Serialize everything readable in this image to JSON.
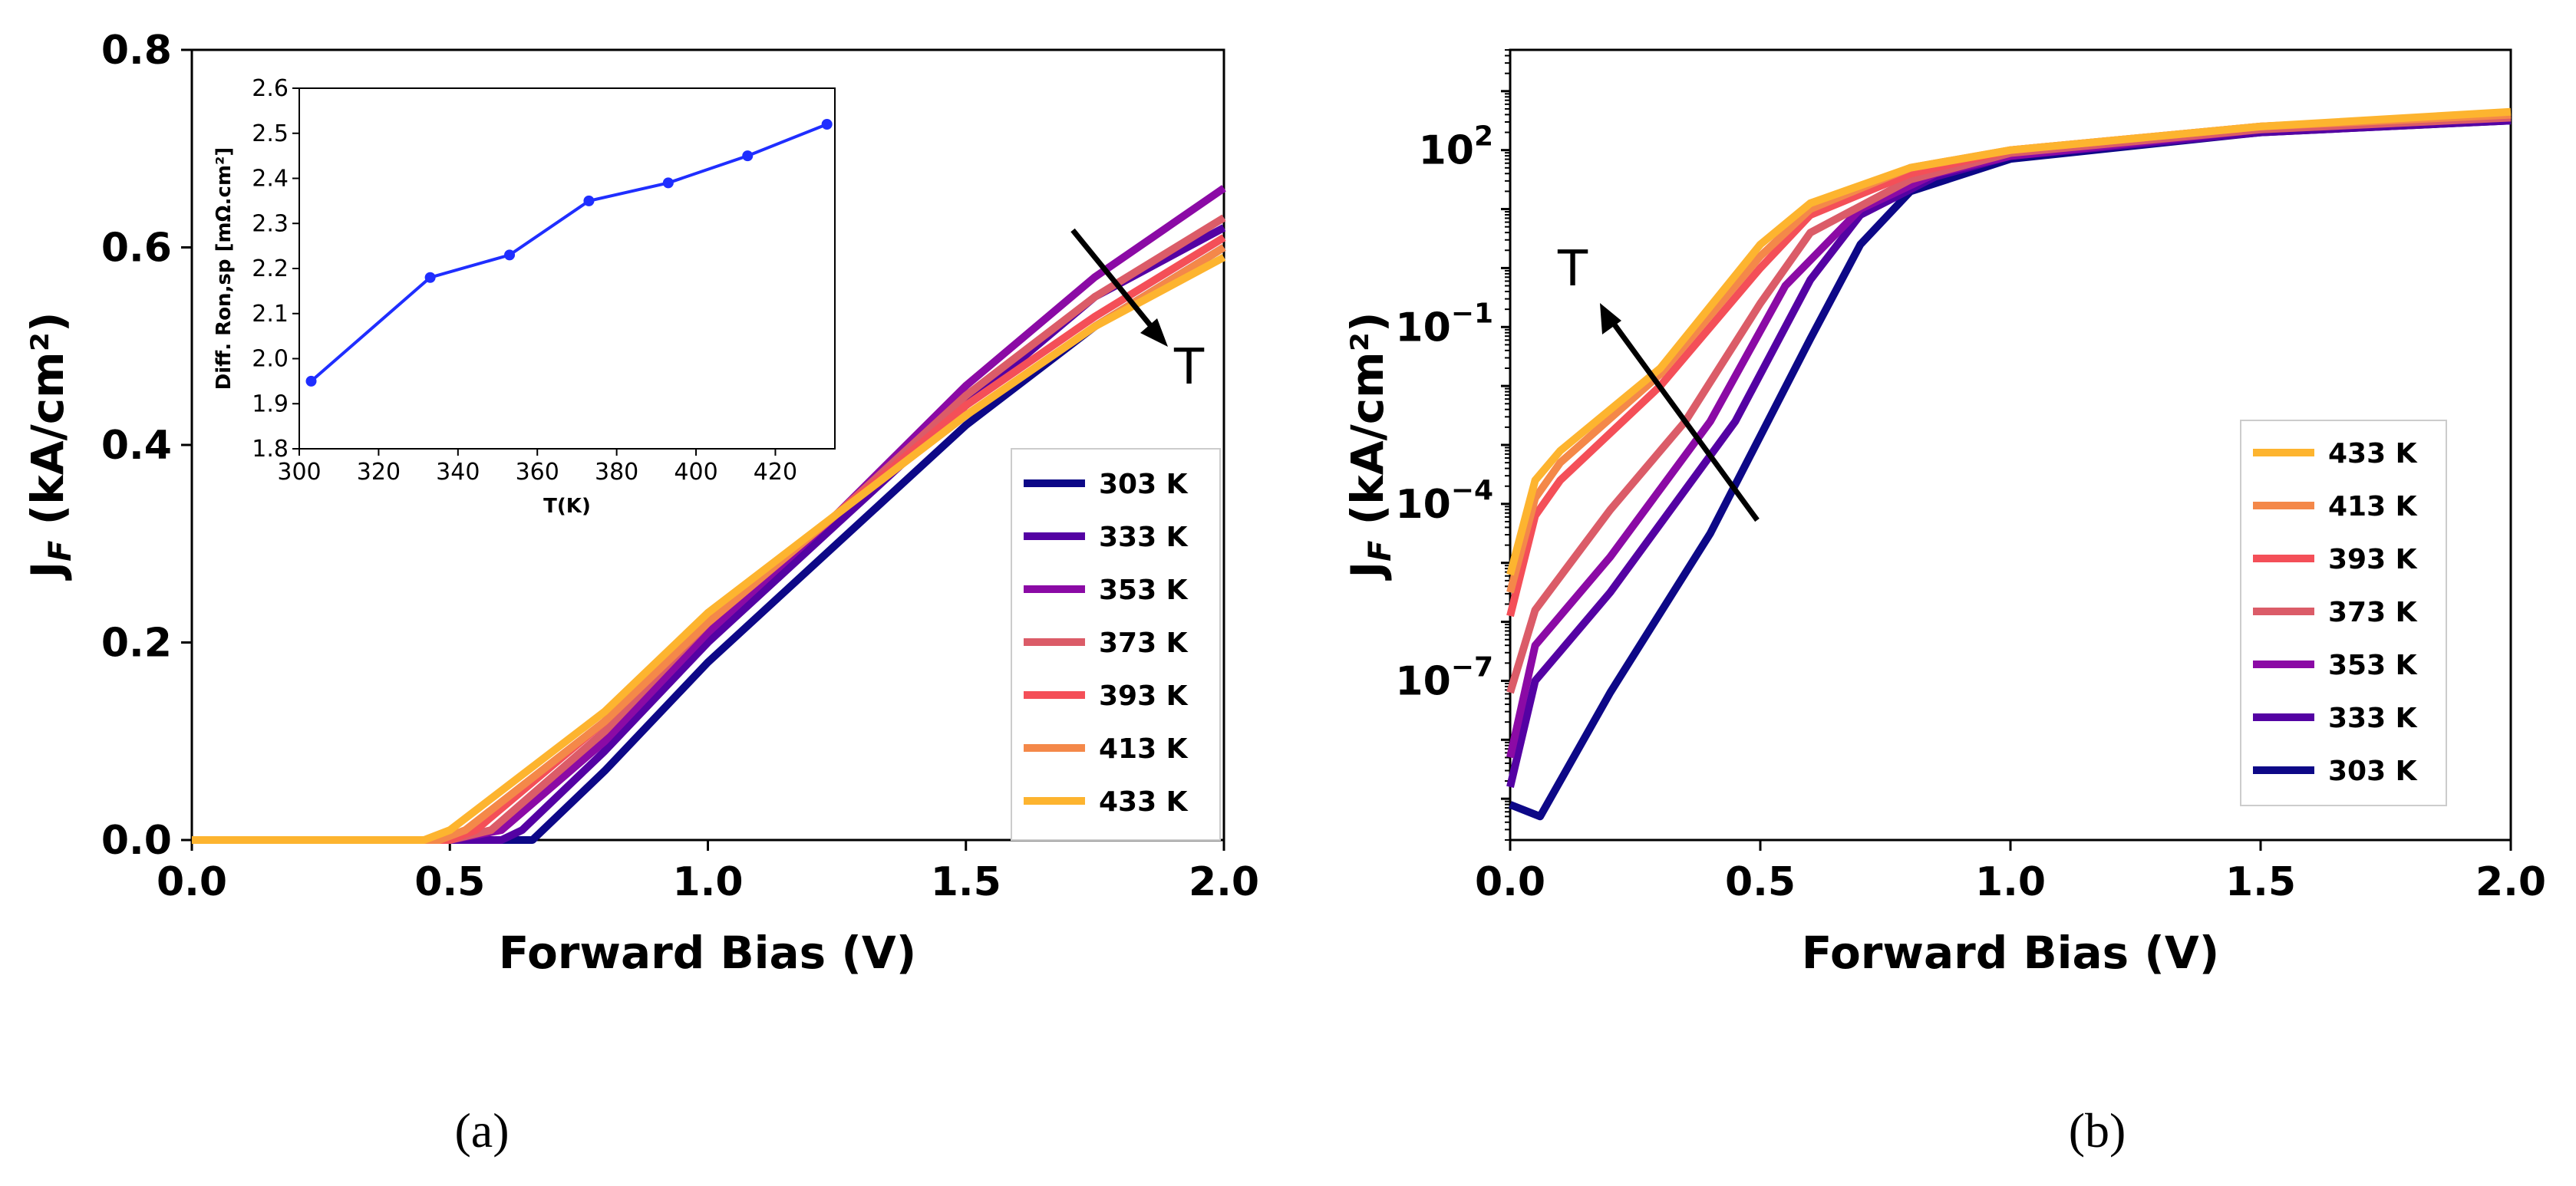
{
  "chart_data": [
    {
      "panel": "a",
      "type": "line",
      "panel_label": "(a)",
      "xlabel": "Forward Bias  (V)",
      "ylabel": "J_F (kA/cm²)",
      "xlim": [
        0,
        2
      ],
      "ylim": [
        0,
        0.8
      ],
      "xticks": [
        "0.0",
        "0.5",
        "1.0",
        "1.5",
        "2.0"
      ],
      "yticks": [
        "0.0",
        "0.2",
        "0.4",
        "0.6",
        "0.8"
      ],
      "annotation": "T",
      "legend_position": "lower-right",
      "series": [
        {
          "name": "303 K",
          "color": "#0d0887",
          "points": [
            [
              0,
              0
            ],
            [
              0.6,
              0
            ],
            [
              0.66,
              0
            ],
            [
              0.8,
              0.07
            ],
            [
              1.0,
              0.18
            ],
            [
              1.25,
              0.3
            ],
            [
              1.5,
              0.42
            ],
            [
              1.75,
              0.52
            ],
            [
              2.0,
              0.6
            ]
          ]
        },
        {
          "name": "333 K",
          "color": "#5402a3",
          "points": [
            [
              0,
              0
            ],
            [
              0.6,
              0
            ],
            [
              0.64,
              0.01
            ],
            [
              0.8,
              0.09
            ],
            [
              1.0,
              0.2
            ],
            [
              1.25,
              0.32
            ],
            [
              1.5,
              0.44
            ],
            [
              1.75,
              0.55
            ],
            [
              2.0,
              0.62
            ]
          ]
        },
        {
          "name": "353 K",
          "color": "#8b0aa5",
          "points": [
            [
              0,
              0
            ],
            [
              0.5,
              0
            ],
            [
              0.6,
              0.01
            ],
            [
              0.8,
              0.1
            ],
            [
              1.0,
              0.21
            ],
            [
              1.25,
              0.33
            ],
            [
              1.5,
              0.46
            ],
            [
              1.75,
              0.57
            ],
            [
              2.0,
              0.66
            ]
          ]
        },
        {
          "name": "373 K",
          "color": "#db5c68",
          "points": [
            [
              0,
              0
            ],
            [
              0.5,
              0
            ],
            [
              0.58,
              0.01
            ],
            [
              0.8,
              0.11
            ],
            [
              1.0,
              0.22
            ],
            [
              1.25,
              0.33
            ],
            [
              1.5,
              0.45
            ],
            [
              1.75,
              0.55
            ],
            [
              2.0,
              0.63
            ]
          ]
        },
        {
          "name": "393 K",
          "color": "#f44f58",
          "points": [
            [
              0,
              0
            ],
            [
              0.5,
              0
            ],
            [
              0.55,
              0.01
            ],
            [
              0.8,
              0.12
            ],
            [
              1.0,
              0.22
            ],
            [
              1.25,
              0.33
            ],
            [
              1.5,
              0.44
            ],
            [
              1.75,
              0.53
            ],
            [
              2.0,
              0.61
            ]
          ]
        },
        {
          "name": "413 K",
          "color": "#f48849",
          "points": [
            [
              0,
              0
            ],
            [
              0.48,
              0
            ],
            [
              0.53,
              0.01
            ],
            [
              0.8,
              0.12
            ],
            [
              1.0,
              0.22
            ],
            [
              1.25,
              0.33
            ],
            [
              1.5,
              0.43
            ],
            [
              1.75,
              0.52
            ],
            [
              2.0,
              0.6
            ]
          ]
        },
        {
          "name": "433 K",
          "color": "#fdb42f",
          "points": [
            [
              0,
              0
            ],
            [
              0.45,
              0
            ],
            [
              0.5,
              0.01
            ],
            [
              0.8,
              0.13
            ],
            [
              1.0,
              0.23
            ],
            [
              1.25,
              0.33
            ],
            [
              1.5,
              0.43
            ],
            [
              1.75,
              0.52
            ],
            [
              2.0,
              0.59
            ]
          ]
        }
      ],
      "inset": {
        "type": "line",
        "xlabel": "T(K)",
        "ylabel": "Diff. Ron,sp [mΩ.cm²]",
        "xlim": [
          300,
          435
        ],
        "ylim": [
          1.8,
          2.6
        ],
        "xticks": [
          "300",
          "320",
          "340",
          "360",
          "380",
          "400",
          "420"
        ],
        "yticks": [
          "1.8",
          "1.9",
          "2.0",
          "2.1",
          "2.2",
          "2.3",
          "2.4",
          "2.5",
          "2.6"
        ],
        "color": "#1f2eff",
        "x": [
          303,
          333,
          353,
          373,
          393,
          413,
          433
        ],
        "y": [
          1.95,
          2.18,
          2.23,
          2.35,
          2.39,
          2.45,
          2.52
        ]
      }
    },
    {
      "panel": "b",
      "type": "line",
      "yscale": "log",
      "panel_label": "(b)",
      "xlabel": "Forward Bias  (V)",
      "ylabel": "J_F (kA/cm²)",
      "xlim": [
        0,
        2
      ],
      "ylim_log10": [
        -9.7,
        3.7
      ],
      "xticks": [
        "0.0",
        "0.5",
        "1.0",
        "1.5",
        "2.0"
      ],
      "yticks": [
        {
          "base": "10",
          "exp": "2",
          "log10": 2
        },
        {
          "base": "10",
          "exp": "−1",
          "log10": -1
        },
        {
          "base": "10",
          "exp": "−4",
          "log10": -4
        },
        {
          "base": "10",
          "exp": "−7",
          "log10": -7
        }
      ],
      "annotation": "T",
      "legend_position": "center-right",
      "series": [
        {
          "name": "433 K",
          "color": "#fdb42f",
          "points": [
            [
              0,
              -5.2
            ],
            [
              0.05,
              -3.6
            ],
            [
              0.1,
              -3.1
            ],
            [
              0.3,
              -1.7
            ],
            [
              0.5,
              0.4
            ],
            [
              0.6,
              1.1
            ],
            [
              0.8,
              1.7
            ],
            [
              1.0,
              2.0
            ],
            [
              1.5,
              2.4
            ],
            [
              2.0,
              2.65
            ]
          ]
        },
        {
          "name": "413 K",
          "color": "#f48849",
          "points": [
            [
              0,
              -5.5
            ],
            [
              0.05,
              -3.9
            ],
            [
              0.1,
              -3.3
            ],
            [
              0.3,
              -1.8
            ],
            [
              0.5,
              0.2
            ],
            [
              0.6,
              1.0
            ],
            [
              0.8,
              1.7
            ],
            [
              1.0,
              2.0
            ],
            [
              1.5,
              2.4
            ],
            [
              2.0,
              2.6
            ]
          ]
        },
        {
          "name": "393 K",
          "color": "#f44f58",
          "points": [
            [
              0,
              -5.9
            ],
            [
              0.05,
              -4.2
            ],
            [
              0.1,
              -3.6
            ],
            [
              0.3,
              -2.0
            ],
            [
              0.5,
              0.0
            ],
            [
              0.6,
              0.9
            ],
            [
              0.8,
              1.6
            ],
            [
              1.0,
              2.0
            ],
            [
              1.5,
              2.4
            ],
            [
              2.0,
              2.6
            ]
          ]
        },
        {
          "name": "373 K",
          "color": "#db5c68",
          "points": [
            [
              0,
              -7.2
            ],
            [
              0.05,
              -5.8
            ],
            [
              0.2,
              -4.1
            ],
            [
              0.35,
              -2.6
            ],
            [
              0.5,
              -0.6
            ],
            [
              0.6,
              0.6
            ],
            [
              0.8,
              1.5
            ],
            [
              1.0,
              1.95
            ],
            [
              1.5,
              2.35
            ],
            [
              2.0,
              2.55
            ]
          ]
        },
        {
          "name": "353 K",
          "color": "#8b0aa5",
          "points": [
            [
              0,
              -8.3
            ],
            [
              0.05,
              -6.4
            ],
            [
              0.2,
              -4.9
            ],
            [
              0.4,
              -2.6
            ],
            [
              0.55,
              -0.3
            ],
            [
              0.7,
              1.0
            ],
            [
              0.85,
              1.6
            ],
            [
              1.0,
              1.9
            ],
            [
              1.5,
              2.35
            ],
            [
              2.0,
              2.55
            ]
          ]
        },
        {
          "name": "333 K",
          "color": "#5402a3",
          "points": [
            [
              0,
              -8.8
            ],
            [
              0.05,
              -7.0
            ],
            [
              0.2,
              -5.5
            ],
            [
              0.45,
              -2.6
            ],
            [
              0.6,
              -0.2
            ],
            [
              0.7,
              0.9
            ],
            [
              0.85,
              1.55
            ],
            [
              1.0,
              1.9
            ],
            [
              1.5,
              2.3
            ],
            [
              2.0,
              2.5
            ]
          ]
        },
        {
          "name": "303 K",
          "color": "#0d0887",
          "points": [
            [
              0,
              -9.1
            ],
            [
              0.06,
              -9.3
            ],
            [
              0.2,
              -7.2
            ],
            [
              0.4,
              -4.5
            ],
            [
              0.6,
              -1.2
            ],
            [
              0.7,
              0.4
            ],
            [
              0.8,
              1.3
            ],
            [
              1.0,
              1.85
            ],
            [
              1.5,
              2.3
            ],
            [
              2.0,
              2.5
            ]
          ]
        }
      ]
    }
  ]
}
